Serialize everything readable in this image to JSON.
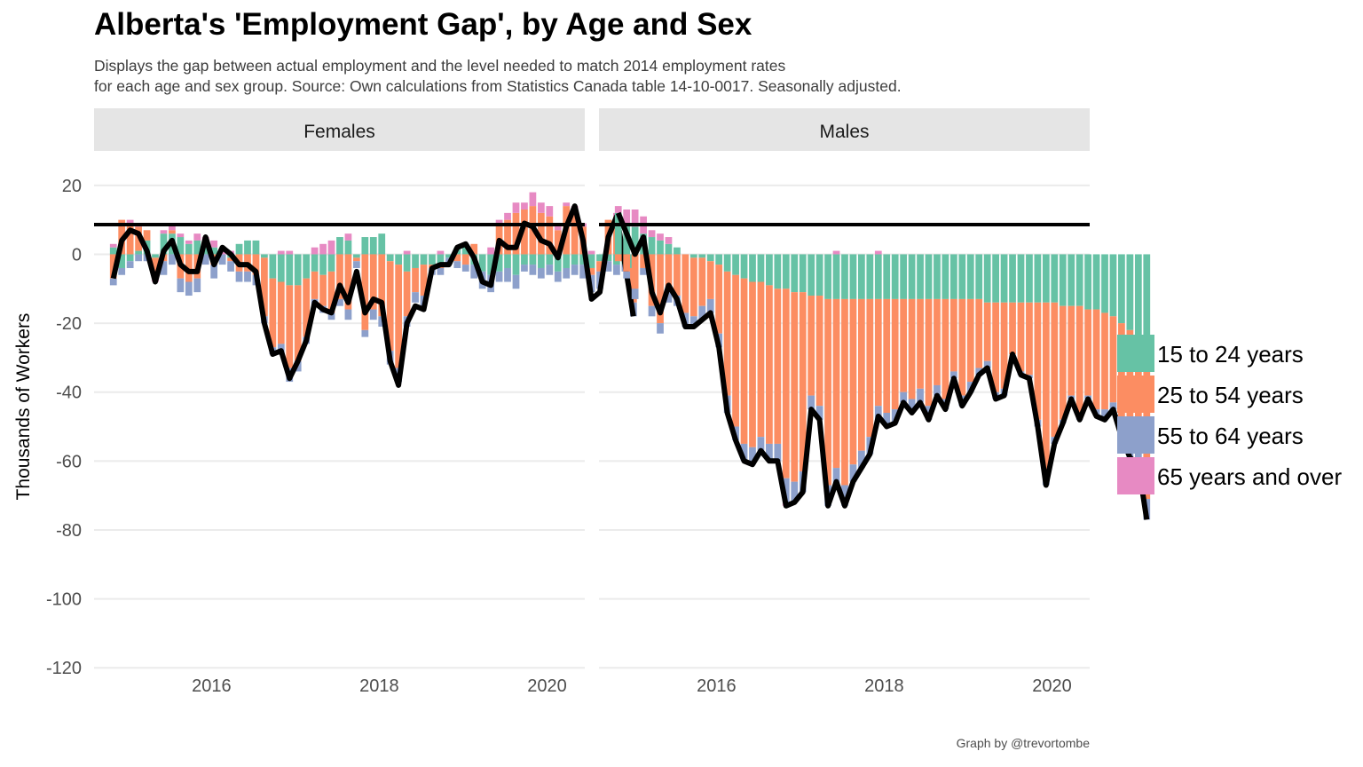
{
  "title": "Alberta's 'Employment Gap', by Age and Sex",
  "subtitle_line1": "Displays the gap between actual employment and the level needed to match 2014 employment rates",
  "subtitle_line2": "for each age and sex group. Source: Own calculations from Statistics Canada table 14-10-0017. Seasonally adjusted.",
  "caption": "Graph by @trevortombe",
  "chart_data": {
    "type": "bar",
    "stacked": true,
    "ylabel": "Thousands of Workers",
    "ylim": [
      -122,
      30
    ],
    "yticks": [
      20,
      0,
      -20,
      -40,
      -60,
      -80,
      -100,
      -120
    ],
    "xticks": [
      2016,
      2018,
      2020
    ],
    "x_start": 2014.83,
    "x_step": 0.1,
    "grid": true,
    "legend_position": "right",
    "colors": {
      "15 to 24 years": "#66c2a5",
      "25 to 54 years": "#fc8d62",
      "55 to 64 years": "#8da0cb",
      "65 years and over": "#e78ac3",
      "total_line": "#000000"
    },
    "series": [
      {
        "name": "15 to 24 years"
      },
      {
        "name": "25 to 54 years"
      },
      {
        "name": "55 to 64 years"
      },
      {
        "name": "65 years and over"
      }
    ],
    "panels": [
      {
        "strip": "Females",
        "totals": [
          -7,
          4,
          7,
          6,
          1,
          -8,
          1,
          4,
          -3,
          -5,
          -5,
          5,
          -3,
          2,
          0,
          -3,
          -3,
          -5,
          -20,
          -29,
          -28,
          -36,
          -31,
          -25,
          -14,
          -16,
          -17,
          -9,
          -14,
          -5,
          -17,
          -13,
          -14,
          -31,
          -38,
          -20,
          -15,
          -16,
          -4,
          -3,
          -3,
          2,
          3,
          -1,
          -8,
          -9,
          4,
          2,
          2,
          9,
          8,
          4,
          3,
          -1,
          8,
          14,
          4,
          -13,
          -11,
          5,
          11,
          -3,
          -18
        ],
        "youth": [
          2,
          -4,
          -2,
          1,
          4,
          -1,
          6,
          6,
          5,
          3,
          4,
          3,
          2,
          0,
          -1,
          3,
          4,
          4,
          -1,
          -7,
          -8,
          -9,
          -9,
          -7,
          -5,
          -6,
          -5,
          5,
          4,
          -1,
          5,
          5,
          6,
          -2,
          -3,
          -5,
          -4,
          -3,
          -3,
          -3,
          -1,
          2,
          3,
          -3,
          -5,
          -6,
          -5,
          -4,
          -6,
          -3,
          -3,
          -4,
          -3,
          -5,
          -4,
          -3,
          -3,
          -4,
          -2,
          -2,
          -3,
          -3,
          -4
        ],
        "core": [
          -7,
          10,
          9,
          7,
          3,
          -4,
          -2,
          1,
          -7,
          -8,
          -7,
          1,
          -3,
          0,
          -1,
          -5,
          -5,
          -6,
          -17,
          -20,
          -18,
          -24,
          -22,
          -17,
          -8,
          -9,
          -12,
          -13,
          -16,
          -1,
          -22,
          -16,
          -18,
          -26,
          -30,
          -13,
          -7,
          -9,
          -1,
          -1,
          0,
          -2,
          -3,
          3,
          0,
          0,
          9,
          10,
          12,
          13,
          14,
          12,
          11,
          7,
          14,
          12,
          8,
          -2,
          -3,
          10,
          11,
          2,
          -10
        ],
        "older": [
          -2,
          -2,
          -2,
          -2,
          -2,
          -2,
          -4,
          -3,
          -4,
          -4,
          -4,
          -3,
          -4,
          -3,
          -3,
          -3,
          -3,
          -3,
          -2,
          -2,
          -3,
          -4,
          -3,
          -2,
          -2,
          -2,
          -2,
          -2,
          -3,
          -2,
          -2,
          -3,
          -3,
          -4,
          -4,
          -3,
          -3,
          -3,
          -2,
          -2,
          -2,
          -2,
          -2,
          -4,
          -5,
          -5,
          -3,
          -4,
          -4,
          -2,
          -3,
          -3,
          -3,
          -3,
          -3,
          -3,
          -4,
          -5,
          -5,
          -3,
          -3,
          -2,
          -4
        ],
        "senior": [
          1,
          0,
          1,
          1,
          0,
          -1,
          1,
          2,
          1,
          1,
          2,
          1,
          2,
          1,
          1,
          0,
          0,
          0,
          0,
          0,
          1,
          1,
          0,
          0,
          2,
          3,
          4,
          0,
          2,
          0,
          0,
          0,
          0,
          0,
          0,
          1,
          0,
          0,
          0,
          1,
          0,
          0,
          0,
          0,
          0,
          2,
          1,
          2,
          3,
          2,
          4,
          3,
          3,
          2,
          1,
          2,
          1,
          1,
          0,
          0,
          1,
          0,
          0
        ]
      },
      {
        "strip": "Males",
        "totals": [
          12,
          6,
          0,
          5,
          -11,
          -17,
          -9,
          -13,
          -21,
          -21,
          -19,
          -17,
          -27,
          -46,
          -54,
          -60,
          -61,
          -57,
          -60,
          -60,
          -73,
          -72,
          -69,
          -45,
          -48,
          -73,
          -66,
          -73,
          -66,
          -62,
          -58,
          -47,
          -50,
          -49,
          -43,
          -46,
          -43,
          -48,
          -41,
          -45,
          -36,
          -44,
          -40,
          -35,
          -33,
          -42,
          -41,
          -29,
          -35,
          -36,
          -50,
          -67,
          -55,
          -49,
          -42,
          -48,
          -42,
          -47,
          -48,
          -45,
          -53,
          -59,
          -61,
          -77
        ],
        "youth": [
          12,
          9,
          8,
          6,
          5,
          4,
          3,
          2,
          0,
          -1,
          -1,
          -2,
          -3,
          -5,
          -6,
          -7,
          -8,
          -8,
          -9,
          -10,
          -10,
          -11,
          -11,
          -12,
          -12,
          -13,
          -13,
          -13,
          -13,
          -13,
          -13,
          -13,
          -13,
          -13,
          -13,
          -13,
          -13,
          -13,
          -13,
          -13,
          -13,
          -13,
          -13,
          -13,
          -14,
          -14,
          -14,
          -14,
          -14,
          -14,
          -14,
          -14,
          -14,
          -15,
          -15,
          -15,
          -16,
          -16,
          -17,
          -18,
          -20,
          -22,
          -24,
          -30
        ],
        "core": [
          -2,
          -5,
          -10,
          -4,
          -15,
          -20,
          -11,
          -12,
          -17,
          -17,
          -14,
          -11,
          -20,
          -36,
          -44,
          -48,
          -48,
          -45,
          -46,
          -45,
          -55,
          -55,
          -52,
          -29,
          -32,
          -54,
          -49,
          -54,
          -48,
          -44,
          -40,
          -31,
          -33,
          -32,
          -27,
          -29,
          -26,
          -31,
          -25,
          -29,
          -21,
          -28,
          -24,
          -20,
          -17,
          -26,
          -25,
          -15,
          -20,
          -21,
          -34,
          -50,
          -39,
          -33,
          -26,
          -32,
          -25,
          -29,
          -28,
          -25,
          -30,
          -35,
          -33,
          -41
        ],
        "older": [
          0,
          -2,
          -3,
          -2,
          -3,
          -3,
          -3,
          -3,
          -4,
          -3,
          -4,
          -4,
          -4,
          -5,
          -4,
          -5,
          -5,
          -4,
          -5,
          -5,
          -7,
          -6,
          -6,
          -4,
          -4,
          -6,
          -5,
          -6,
          -5,
          -5,
          -5,
          -4,
          -4,
          -4,
          -3,
          -4,
          -4,
          -4,
          -3,
          -3,
          -2,
          -3,
          -3,
          -2,
          -2,
          -2,
          -2,
          0,
          -1,
          -1,
          -2,
          -3,
          -2,
          -1,
          -1,
          -1,
          -1,
          -2,
          -2,
          -2,
          -3,
          -2,
          -4,
          -6
        ],
        "senior": [
          2,
          4,
          5,
          5,
          2,
          2,
          2,
          0,
          0,
          0,
          0,
          0,
          0,
          0,
          0,
          0,
          0,
          0,
          0,
          0,
          -1,
          0,
          0,
          0,
          0,
          0,
          1,
          0,
          0,
          0,
          0,
          1,
          0,
          0,
          0,
          0,
          0,
          0,
          0,
          0,
          0,
          0,
          0,
          0,
          0,
          0,
          0,
          0,
          0,
          0,
          0,
          0,
          0,
          0,
          0,
          0,
          0,
          0,
          0,
          0,
          0,
          0,
          0,
          0
        ]
      }
    ]
  }
}
